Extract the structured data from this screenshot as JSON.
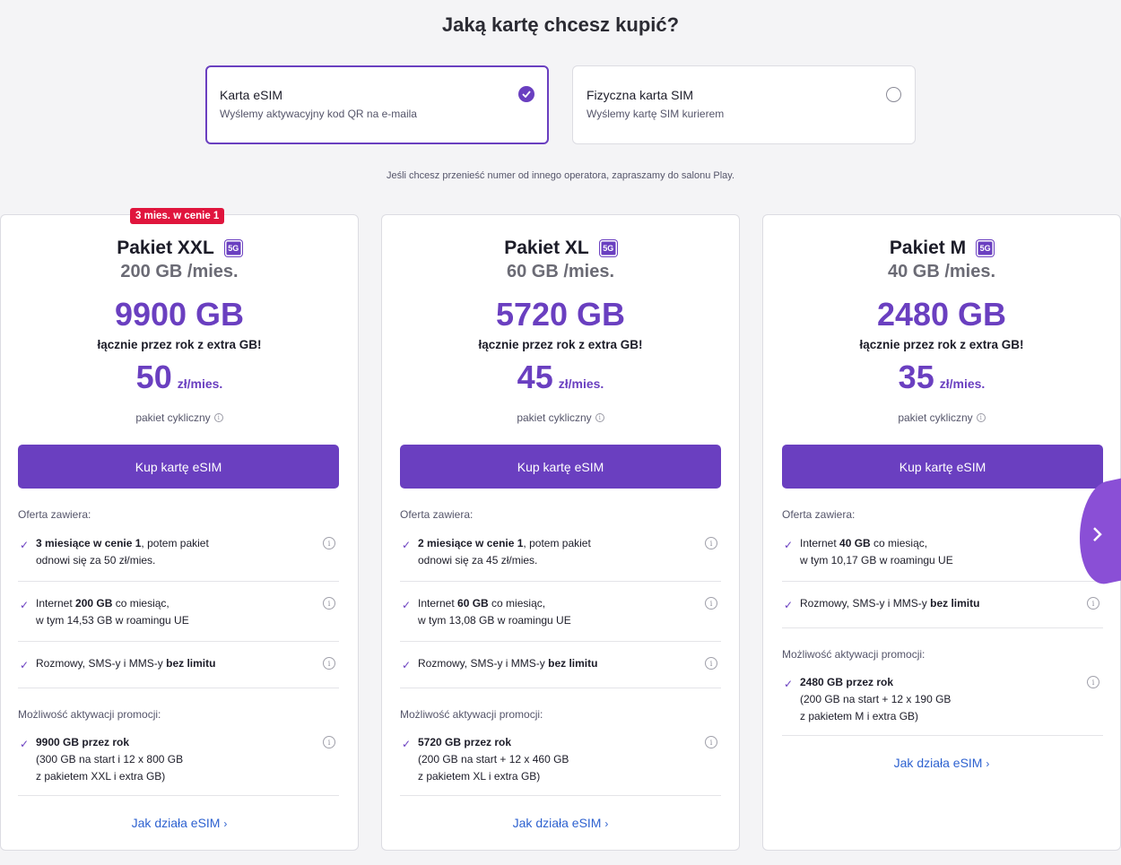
{
  "heading": "Jaką kartę chcesz kupić?",
  "sim_options": [
    {
      "title": "Karta eSIM",
      "subtitle": "Wyślemy aktywacyjny kod QR na e-maila",
      "selected": true
    },
    {
      "title": "Fizyczna karta SIM",
      "subtitle": "Wyślemy kartę SIM kurierem",
      "selected": false
    }
  ],
  "notice": "Jeśli chcesz przenieść numer od innego operatora, zapraszamy do salonu Play.",
  "badge_5g": "5G",
  "plans": [
    {
      "promo_badge": "3 mies. w cenie 1",
      "name": "Pakiet XXL",
      "gb_month": "200 GB /mies.",
      "total": "9900 GB",
      "total_sub": "łącznie przez rok z extra GB!",
      "price": "50",
      "price_unit": "zł/mies.",
      "cyclic": "pakiet cykliczny",
      "button": "Kup kartę eSIM",
      "offer_label": "Oferta zawiera:",
      "features": [
        {
          "bold": "3 miesiące w cenie 1",
          "rest": ", potem pakiet",
          "line2": "odnowi się za 50 zł/mies."
        },
        {
          "pre": "Internet ",
          "bold": "200 GB",
          "rest": " co miesiąc,",
          "line2": "w tym 14,53 GB w roamingu UE"
        },
        {
          "pre": "Rozmowy, SMS-y i MMS-y ",
          "bold": "bez limitu"
        }
      ],
      "promo_label": "Możliwość aktywacji promocji:",
      "promo": {
        "bold": "9900 GB przez rok",
        "line2": "(300 GB na start i 12 x 800 GB",
        "line3": "z pakietem XXL i extra GB)"
      },
      "link": "Jak działa eSIM"
    },
    {
      "name": "Pakiet XL",
      "gb_month": "60 GB /mies.",
      "total": "5720 GB",
      "total_sub": "łącznie przez rok z extra GB!",
      "price": "45",
      "price_unit": "zł/mies.",
      "cyclic": "pakiet cykliczny",
      "button": "Kup kartę eSIM",
      "offer_label": "Oferta zawiera:",
      "features": [
        {
          "bold": "2 miesiące w cenie 1",
          "rest": ", potem pakiet",
          "line2": "odnowi się za 45 zł/mies."
        },
        {
          "pre": "Internet ",
          "bold": "60 GB",
          "rest": " co miesiąc,",
          "line2": "w tym 13,08 GB w roamingu UE"
        },
        {
          "pre": "Rozmowy, SMS-y i MMS-y ",
          "bold": "bez limitu"
        }
      ],
      "promo_label": "Możliwość aktywacji promocji:",
      "promo": {
        "bold": "5720 GB przez rok",
        "line2": "(200 GB na start + 12 x 460 GB",
        "line3": "z pakietem XL i extra GB)"
      },
      "link": "Jak działa eSIM"
    },
    {
      "name": "Pakiet M",
      "gb_month": "40 GB /mies.",
      "total": "2480 GB",
      "total_sub": "łącznie przez rok z extra GB!",
      "price": "35",
      "price_unit": "zł/mies.",
      "cyclic": "pakiet cykliczny",
      "button": "Kup kartę eSIM",
      "offer_label": "Oferta zawiera:",
      "features": [
        {
          "pre": "Internet ",
          "bold": "40 GB",
          "rest": " co miesiąc,",
          "line2": "w tym 10,17 GB w roamingu UE"
        },
        {
          "pre": "Rozmowy, SMS-y i MMS-y ",
          "bold": "bez limitu"
        }
      ],
      "promo_label": "Możliwość aktywacji promocji:",
      "promo": {
        "bold": "2480 GB przez rok",
        "line2": "(200 GB na start + 12 x 190 GB",
        "line3": "z pakietem M i extra GB)"
      },
      "link": "Jak działa eSIM"
    }
  ],
  "icons": {
    "check": "check-icon",
    "info": "info-icon",
    "chevron": "chevron-right-icon"
  },
  "colors": {
    "accent": "#6a3fc0",
    "promo_red": "#e0153d",
    "link": "#2e62d0"
  }
}
